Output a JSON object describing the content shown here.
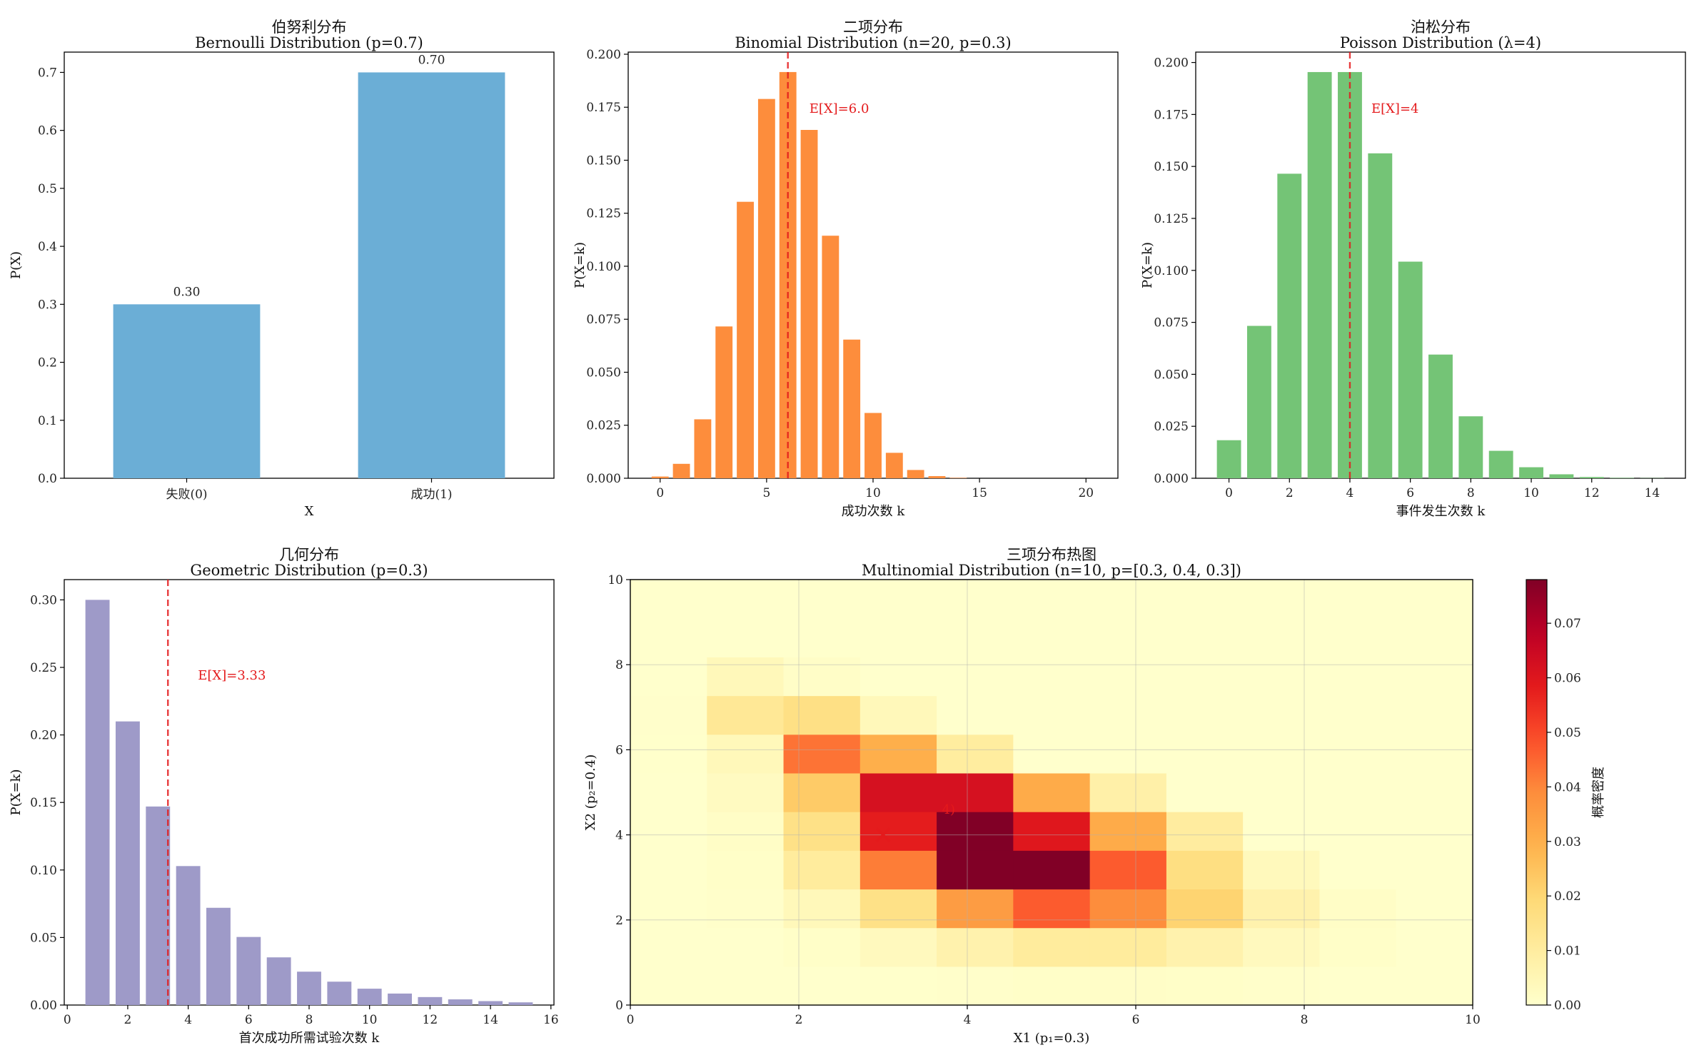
{
  "chart_data": [
    {
      "type": "bar",
      "title_cn": "伯努利分布",
      "title": "Bernoulli Distribution (p=0.7)",
      "xlabel": "X",
      "ylabel": "P(X)",
      "categories": [
        "失败(0)",
        "成功(1)"
      ],
      "values": [
        0.3,
        0.7
      ],
      "data_labels": [
        "0.30",
        "0.70"
      ],
      "ylim": [
        0,
        0.735
      ],
      "yticks": [
        "0.0",
        "0.1",
        "0.2",
        "0.3",
        "0.4",
        "0.5",
        "0.6",
        "0.7"
      ],
      "color": "#6baed6"
    },
    {
      "type": "bar",
      "title_cn": "二项分布",
      "title": "Binomial Distribution (n=20, p=0.3)",
      "xlabel": "成功次数 k",
      "ylabel": "P(X=k)",
      "x": [
        0,
        1,
        2,
        3,
        4,
        5,
        6,
        7,
        8,
        9,
        10,
        11,
        12,
        13,
        14,
        15,
        16,
        17,
        18,
        19,
        20
      ],
      "values": [
        0.0008,
        0.0068,
        0.0278,
        0.0716,
        0.1304,
        0.1789,
        0.1916,
        0.1643,
        0.1144,
        0.0654,
        0.0308,
        0.012,
        0.0039,
        0.001,
        0.0002,
        0,
        0,
        0,
        0,
        0,
        0
      ],
      "xlim": [
        -1.5,
        21.5
      ],
      "ylim": [
        0,
        0.201
      ],
      "xticks": [
        "0",
        "5",
        "10",
        "15",
        "20"
      ],
      "yticks": [
        "0.000",
        "0.025",
        "0.050",
        "0.075",
        "0.100",
        "0.125",
        "0.150",
        "0.175",
        "0.200"
      ],
      "mean": 6.0,
      "mean_label": "E[X]=6.0",
      "color": "#fd8d3c"
    },
    {
      "type": "bar",
      "title_cn": "泊松分布",
      "title": "Poisson Distribution (λ=4)",
      "xlabel": "事件发生次数 k",
      "ylabel": "P(X=k)",
      "x": [
        0,
        1,
        2,
        3,
        4,
        5,
        6,
        7,
        8,
        9,
        10,
        11,
        12,
        13,
        14
      ],
      "values": [
        0.0183,
        0.0733,
        0.1465,
        0.1954,
        0.1954,
        0.1563,
        0.1042,
        0.0595,
        0.0298,
        0.0132,
        0.0053,
        0.0019,
        0.0006,
        0.0002,
        0.0001
      ],
      "xlim": [
        -1.1,
        15.1
      ],
      "ylim": [
        0,
        0.205
      ],
      "xticks": [
        "0",
        "2",
        "4",
        "6",
        "8",
        "10",
        "12",
        "14"
      ],
      "yticks": [
        "0.000",
        "0.025",
        "0.050",
        "0.075",
        "0.100",
        "0.125",
        "0.150",
        "0.175",
        "0.200"
      ],
      "mean": 4,
      "mean_label": "E[X]=4",
      "color": "#74c476"
    },
    {
      "type": "bar",
      "title_cn": "几何分布",
      "title": "Geometric Distribution (p=0.3)",
      "xlabel": "首次成功所需试验次数 k",
      "ylabel": "P(X=k)",
      "x": [
        1,
        2,
        3,
        4,
        5,
        6,
        7,
        8,
        9,
        10,
        11,
        12,
        13,
        14,
        15
      ],
      "values": [
        0.3,
        0.21,
        0.147,
        0.1029,
        0.072,
        0.0504,
        0.0353,
        0.0247,
        0.0173,
        0.0121,
        0.0085,
        0.0059,
        0.0042,
        0.0029,
        0.002
      ],
      "xlim": [
        -0.1,
        16.1
      ],
      "ylim": [
        0,
        0.315
      ],
      "xticks": [
        "0",
        "2",
        "4",
        "6",
        "8",
        "10",
        "12",
        "14",
        "16"
      ],
      "yticks": [
        "0.00",
        "0.05",
        "0.10",
        "0.15",
        "0.20",
        "0.25",
        "0.30"
      ],
      "mean": 3.33,
      "mean_label": "E[X]=3.33",
      "color": "#9e9ac8"
    },
    {
      "type": "heatmap",
      "title_cn": "三项分布热图",
      "title": "Multinomial Distribution (n=10, p=[0.3, 0.4, 0.3])",
      "xlabel": "X1 (p₁=0.3)",
      "ylabel": "X2 (p₂=0.4)",
      "xlim": [
        0,
        10
      ],
      "ylim": [
        0,
        10
      ],
      "xticks": [
        "0",
        "2",
        "4",
        "6",
        "8",
        "10"
      ],
      "yticks": [
        "0",
        "2",
        "4",
        "6",
        "8",
        "10"
      ],
      "colorbar_label": "概率密度",
      "colorbar_ticks": [
        "0.00",
        "0.01",
        "0.02",
        "0.03",
        "0.04",
        "0.05",
        "0.06",
        "0.07"
      ],
      "vmax": 0.078,
      "marker": [
        3,
        4
      ],
      "marker_label": "4)",
      "grid": [
        [
          0.0,
          0.0,
          0.0001,
          0.0002,
          0.0005,
          0.0008,
          0.001,
          0.0008,
          0.0004,
          0.0001,
          0.0
        ],
        [
          0.0,
          0.0001,
          0.0008,
          0.003,
          0.0069,
          0.0104,
          0.0104,
          0.0069,
          0.003,
          0.0008,
          0.0001
        ],
        [
          0.0,
          0.0004,
          0.0039,
          0.0156,
          0.035,
          0.0467,
          0.0389,
          0.0207,
          0.0069,
          0.0013,
          0.0
        ],
        [
          0.0,
          0.0008,
          0.0104,
          0.0415,
          0.0778,
          0.0778,
          0.0467,
          0.0166,
          0.0035,
          0.0,
          0.0
        ],
        [
          0.0,
          0.0013,
          0.0156,
          0.0581,
          0.0778,
          0.0596,
          0.0311,
          0.01,
          0.0,
          0.0,
          0.0
        ],
        [
          0.0001,
          0.0025,
          0.023,
          0.062,
          0.062,
          0.031,
          0.008,
          0.0,
          0.0,
          0.0,
          0.0
        ],
        [
          0.0002,
          0.004,
          0.043,
          0.03,
          0.0099,
          0.0,
          0.0,
          0.0,
          0.0,
          0.0,
          0.0
        ],
        [
          0.0003,
          0.012,
          0.016,
          0.004,
          0.0,
          0.0,
          0.0,
          0.0,
          0.0,
          0.0,
          0.0
        ],
        [
          0.0001,
          0.004,
          0.001,
          0.0,
          0.0,
          0.0,
          0.0,
          0.0,
          0.0,
          0.0,
          0.0
        ],
        [
          0.0,
          0.0,
          0.0,
          0.0,
          0.0,
          0.0,
          0.0,
          0.0,
          0.0,
          0.0,
          0.0
        ],
        [
          0.0,
          0.0,
          0.0,
          0.0,
          0.0,
          0.0,
          0.0,
          0.0,
          0.0,
          0.0,
          0.0
        ]
      ]
    }
  ]
}
